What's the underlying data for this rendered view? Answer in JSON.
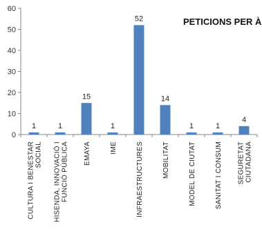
{
  "chart_data": {
    "type": "bar",
    "title": "PETICIONS PER ÀREA",
    "categories": [
      [
        "CULTURA I BENESTAR",
        "SOCIAL"
      ],
      [
        "HISENDA, INNOVACIÓ I",
        "FUNCIÓ PÚBLICA"
      ],
      [
        "EMAYA"
      ],
      [
        "IME"
      ],
      [
        "INFRAESTRUCTURES"
      ],
      [
        "MOBILITAT"
      ],
      [
        "MODEL DE CIUTAT"
      ],
      [
        "SANITAT I CONSUM"
      ],
      [
        "SEGURETAT",
        "CIUTADANA"
      ]
    ],
    "values": [
      1,
      1,
      15,
      1,
      52,
      14,
      1,
      1,
      4
    ],
    "ylim": [
      0,
      60
    ],
    "yticks": [
      0,
      10,
      20,
      30,
      40,
      50,
      60
    ],
    "grid": false,
    "legend": false,
    "colors": {
      "bar": "#4f81bd",
      "axis": "#868686"
    }
  }
}
